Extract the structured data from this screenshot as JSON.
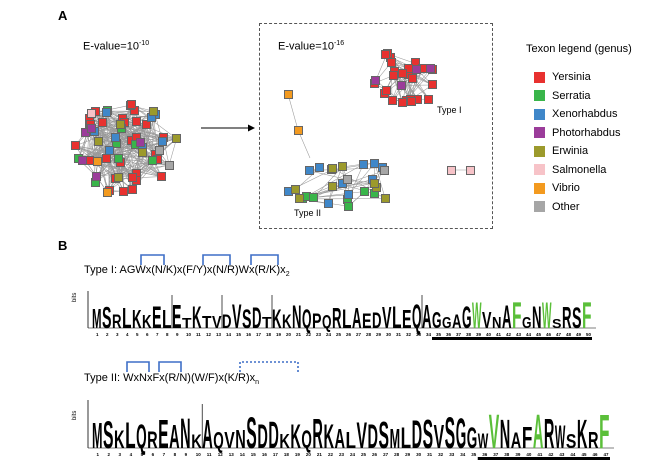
{
  "panels": {
    "A": {
      "label": "A",
      "left_network": {
        "label_prefix": "E-value=10",
        "exponent": "-10"
      },
      "right_network": {
        "label_prefix": "E-value=10",
        "exponent": "-16"
      },
      "type_i_label": "Type I",
      "type_ii_label": "Type II"
    },
    "B": {
      "label": "B",
      "type_i": {
        "prefix": "Type I:",
        "motif": "AGWx(N/K)x(F/Y)x(N/R)Wx(R/K)x",
        "motif_sub": "2",
        "bits_label": "bits",
        "logo_text": "MSRLKKELETKTVDVSDTKKNQPQRLAEDVLEQAGGAGWVNAFGNWSRSF"
      },
      "type_ii": {
        "prefix": "Type II:",
        "motif": "WxNxFx(R/N)(W/F)x(K/R)x",
        "motif_sub": "n",
        "bits_label": "bits",
        "logo_text": "MSKLQREANKAQVNSDDKKQRKALVDSMLDSVSGGWVNAFARWSKRF"
      }
    }
  },
  "legend": {
    "title": "Texon legend (genus)",
    "items": [
      {
        "name": "Yersinia",
        "color": "#e8312f"
      },
      {
        "name": "Serratia",
        "color": "#39b54a"
      },
      {
        "name": "Xenorhabdus",
        "color": "#3f87c9"
      },
      {
        "name": "Photorhabdus",
        "color": "#9b3c9a"
      },
      {
        "name": "Erwinia",
        "color": "#9c9a2c"
      },
      {
        "name": "Salmonella",
        "color": "#f7c3c8"
      },
      {
        "name": "Vibrio",
        "color": "#f39a1f"
      },
      {
        "name": "Other",
        "color": "#a6a6a6"
      }
    ]
  }
}
